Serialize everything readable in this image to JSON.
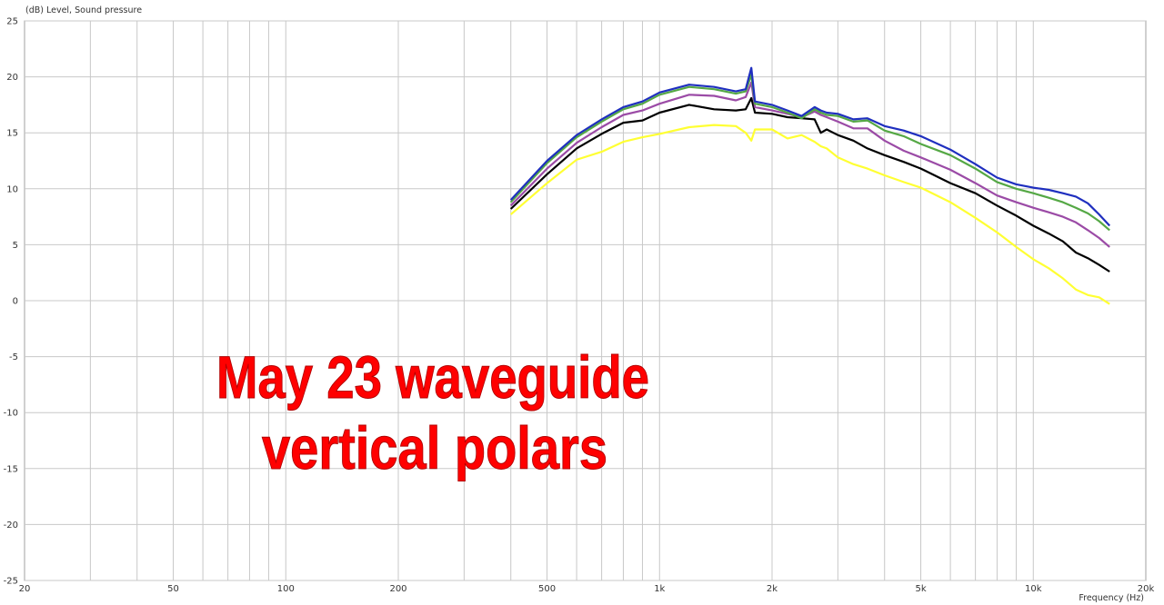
{
  "chart_data": {
    "type": "line",
    "ylabel": "(dB)  Level, Sound pressure",
    "xlabel": "Frequency  (Hz)",
    "x_scale": "log",
    "xlim": [
      20,
      20000
    ],
    "ylim": [
      -25,
      25
    ],
    "grid": true,
    "x_ticks": [
      {
        "value": 20,
        "label": "20"
      },
      {
        "value": 50,
        "label": "50"
      },
      {
        "value": 100,
        "label": "100"
      },
      {
        "value": 200,
        "label": "200"
      },
      {
        "value": 500,
        "label": "500"
      },
      {
        "value": 1000,
        "label": "1k"
      },
      {
        "value": 2000,
        "label": "2k"
      },
      {
        "value": 5000,
        "label": "5k"
      },
      {
        "value": 10000,
        "label": "10k"
      },
      {
        "value": 20000,
        "label": "20k"
      }
    ],
    "y_ticks": [
      25,
      20,
      15,
      10,
      5,
      0,
      -5,
      -10,
      -15,
      -20,
      -25
    ],
    "annotation": [
      "May 23 waveguide",
      "vertical polars"
    ],
    "x": [
      400,
      500,
      600,
      700,
      800,
      900,
      1000,
      1200,
      1400,
      1600,
      1700,
      1760,
      1800,
      2000,
      2200,
      2400,
      2600,
      2700,
      2800,
      3000,
      3300,
      3600,
      4000,
      4500,
      5000,
      6000,
      7000,
      8000,
      9000,
      10000,
      11000,
      12000,
      13000,
      14000,
      15000,
      16000
    ],
    "series": [
      {
        "color": "#1f2fbf",
        "values": [
          9.0,
          12.5,
          14.8,
          16.2,
          17.3,
          17.8,
          18.6,
          19.3,
          19.1,
          18.7,
          18.9,
          20.8,
          17.8,
          17.5,
          17.0,
          16.5,
          17.3,
          17.0,
          16.8,
          16.7,
          16.2,
          16.3,
          15.6,
          15.2,
          14.7,
          13.5,
          12.2,
          11.0,
          10.4,
          10.1,
          9.9,
          9.6,
          9.3,
          8.7,
          7.7,
          6.7
        ]
      },
      {
        "color": "#55a845",
        "values": [
          8.8,
          12.3,
          14.6,
          16.0,
          17.1,
          17.6,
          18.4,
          19.1,
          18.9,
          18.5,
          18.7,
          20.2,
          17.6,
          17.3,
          16.8,
          16.3,
          17.1,
          16.8,
          16.6,
          16.5,
          16.0,
          16.1,
          15.2,
          14.7,
          14.0,
          13.0,
          11.8,
          10.6,
          10.0,
          9.6,
          9.2,
          8.8,
          8.3,
          7.8,
          7.1,
          6.3
        ]
      },
      {
        "color": "#9b4ba6",
        "values": [
          8.5,
          11.8,
          14.1,
          15.5,
          16.6,
          17.0,
          17.6,
          18.4,
          18.3,
          17.9,
          18.2,
          19.5,
          17.3,
          17.0,
          16.7,
          16.4,
          16.9,
          16.6,
          16.4,
          16.0,
          15.4,
          15.4,
          14.3,
          13.4,
          12.8,
          11.7,
          10.5,
          9.4,
          8.8,
          8.3,
          7.9,
          7.5,
          7.0,
          6.3,
          5.6,
          4.8
        ]
      },
      {
        "color": "#000000",
        "values": [
          8.2,
          11.3,
          13.6,
          14.9,
          15.9,
          16.1,
          16.8,
          17.5,
          17.1,
          17.0,
          17.1,
          18.1,
          16.8,
          16.7,
          16.4,
          16.3,
          16.2,
          15.0,
          15.3,
          14.8,
          14.3,
          13.6,
          13.0,
          12.4,
          11.8,
          10.5,
          9.6,
          8.5,
          7.6,
          6.7,
          6.0,
          5.3,
          4.3,
          3.8,
          3.2,
          2.6
        ]
      },
      {
        "color": "#ffff33",
        "values": [
          7.7,
          10.5,
          12.6,
          13.3,
          14.2,
          14.6,
          14.9,
          15.5,
          15.7,
          15.6,
          15.0,
          14.3,
          15.3,
          15.3,
          14.5,
          14.8,
          14.2,
          13.8,
          13.6,
          12.8,
          12.2,
          11.8,
          11.2,
          10.6,
          10.1,
          8.8,
          7.4,
          6.1,
          4.8,
          3.7,
          2.9,
          2.0,
          1.0,
          0.5,
          0.3,
          -0.3
        ]
      }
    ]
  }
}
